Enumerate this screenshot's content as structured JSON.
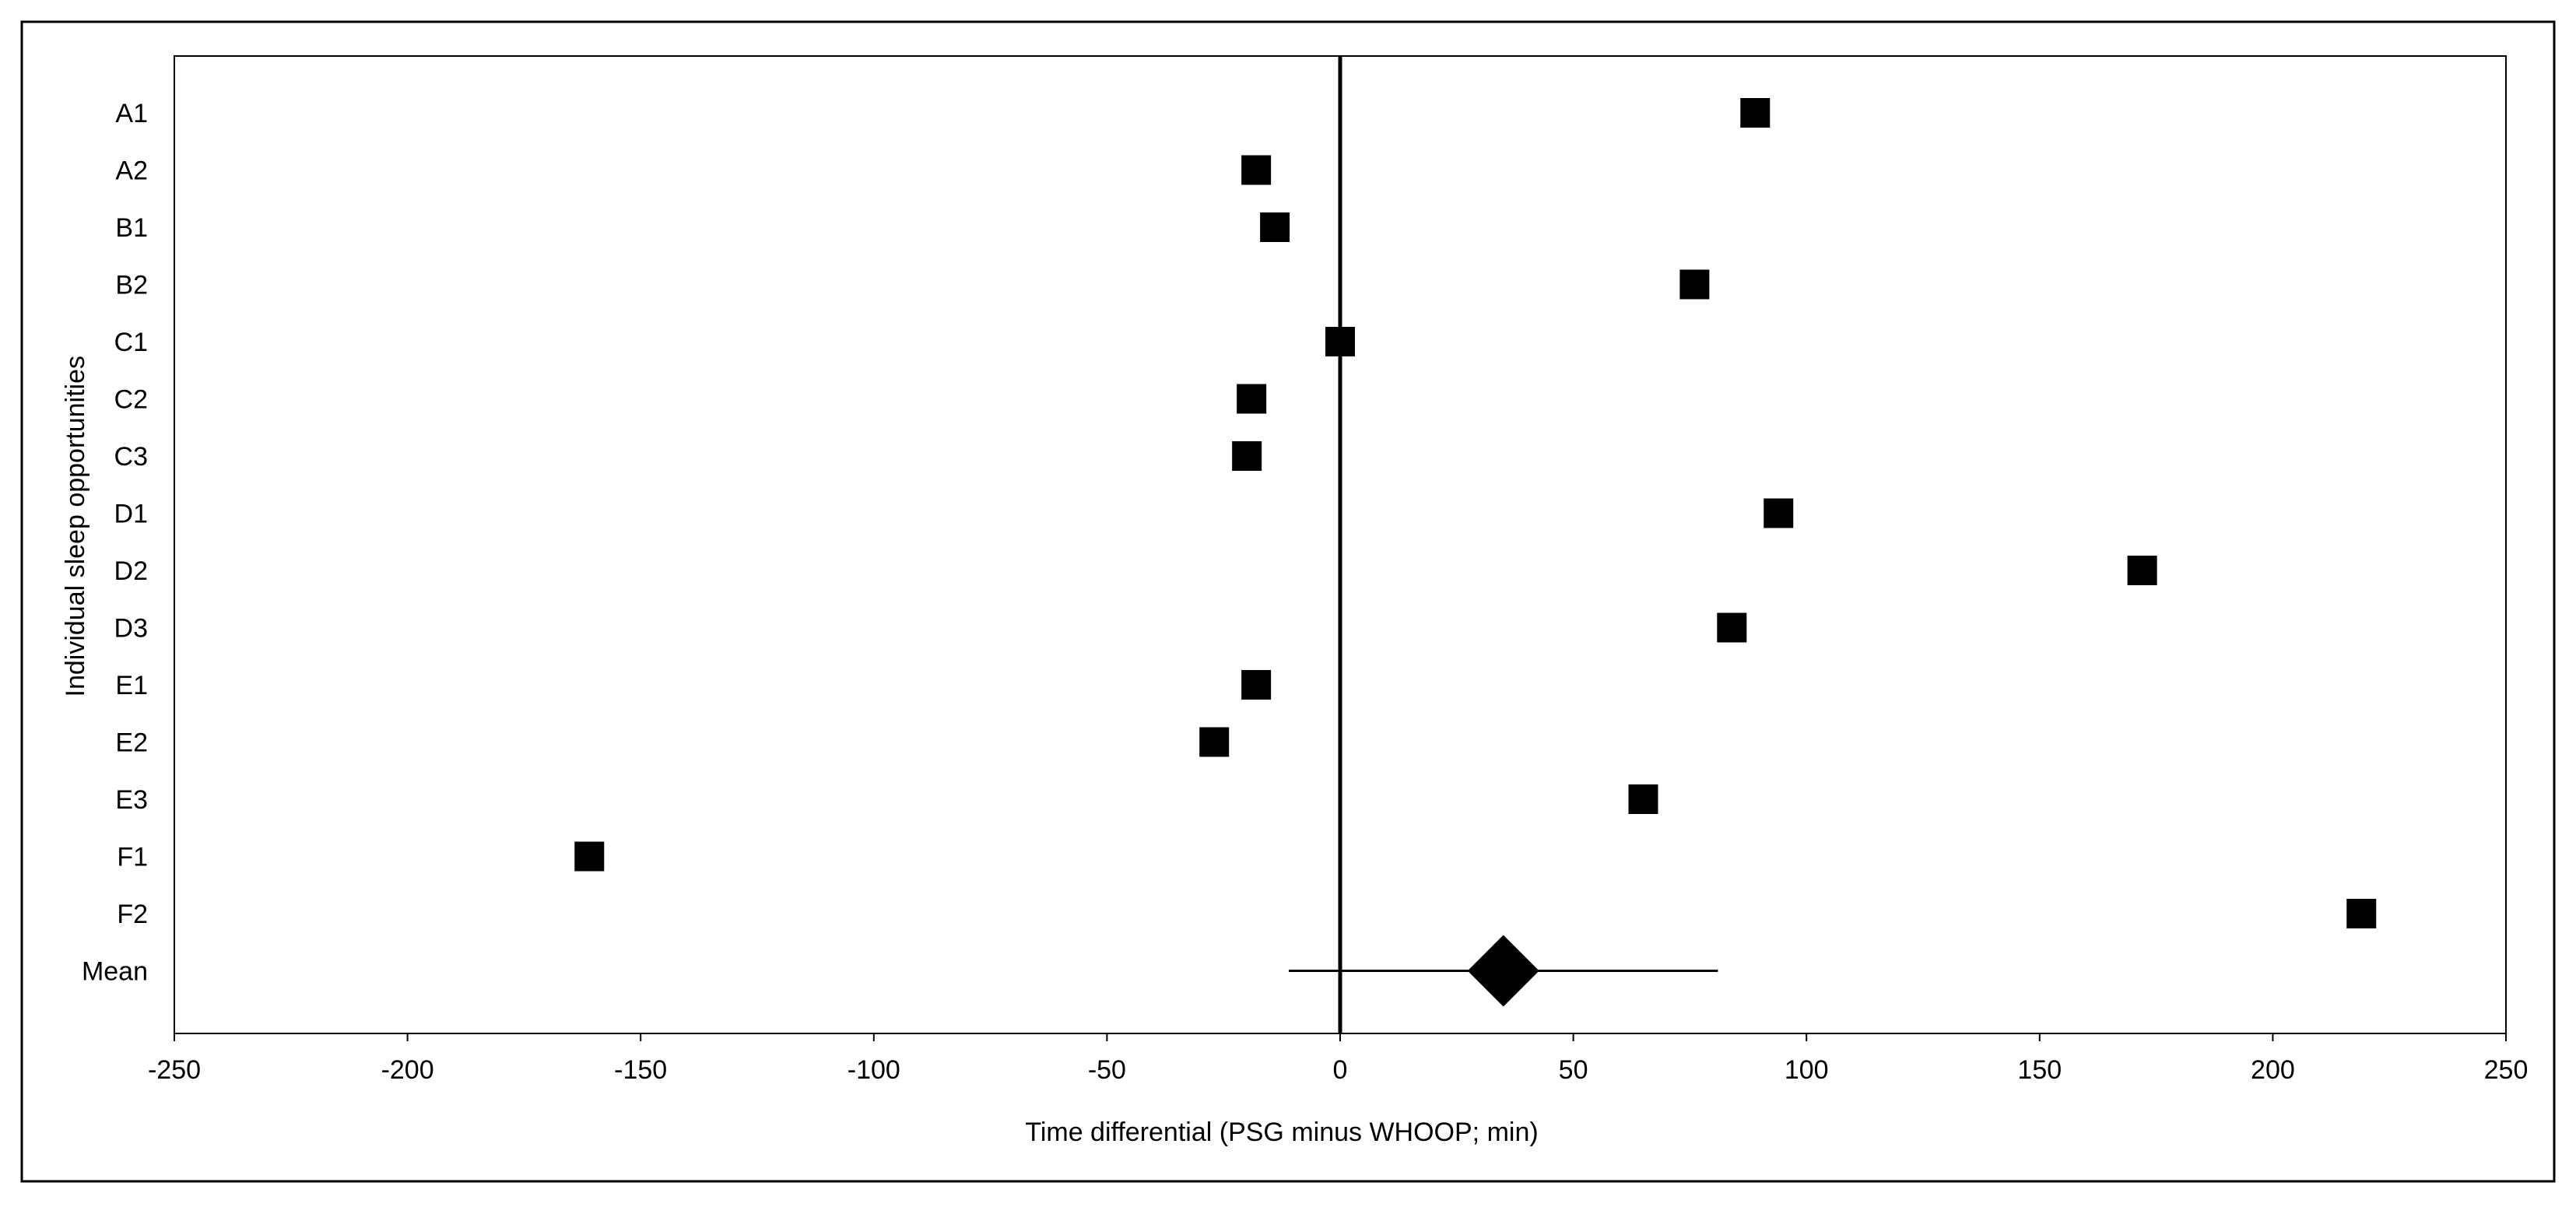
{
  "chart_data": {
    "type": "scatter",
    "subtype": "forest-plot",
    "title": "",
    "xlabel": "Time differential (PSG minus WHOOP; min)",
    "ylabel": "Individual sleep opportunities",
    "xlim": [
      -250,
      250
    ],
    "x_ticks": [
      -250,
      -200,
      -150,
      -100,
      -50,
      0,
      50,
      100,
      150,
      200,
      250
    ],
    "reference_line_x": 0,
    "grid": false,
    "legend": "none",
    "marker_color": "#000000",
    "categories": [
      "A1",
      "A2",
      "B1",
      "B2",
      "C1",
      "C2",
      "C3",
      "D1",
      "D2",
      "D3",
      "E1",
      "E2",
      "E3",
      "F1",
      "F2",
      "Mean"
    ],
    "points": [
      {
        "label": "A1",
        "x": 89,
        "marker": "square"
      },
      {
        "label": "A2",
        "x": -18,
        "marker": "square"
      },
      {
        "label": "B1",
        "x": -14,
        "marker": "square"
      },
      {
        "label": "B2",
        "x": 76,
        "marker": "square"
      },
      {
        "label": "C1",
        "x": 0,
        "marker": "square"
      },
      {
        "label": "C2",
        "x": -19,
        "marker": "square"
      },
      {
        "label": "C3",
        "x": -20,
        "marker": "square"
      },
      {
        "label": "D1",
        "x": 94,
        "marker": "square"
      },
      {
        "label": "D2",
        "x": 172,
        "marker": "square"
      },
      {
        "label": "D3",
        "x": 84,
        "marker": "square"
      },
      {
        "label": "E1",
        "x": -18,
        "marker": "square"
      },
      {
        "label": "E2",
        "x": -27,
        "marker": "square"
      },
      {
        "label": "E3",
        "x": 65,
        "marker": "square"
      },
      {
        "label": "F1",
        "x": -161,
        "marker": "square"
      },
      {
        "label": "F2",
        "x": 219,
        "marker": "square"
      }
    ],
    "mean": {
      "label": "Mean",
      "x": 35,
      "ci_low": -11,
      "ci_high": 81,
      "marker": "diamond"
    }
  }
}
